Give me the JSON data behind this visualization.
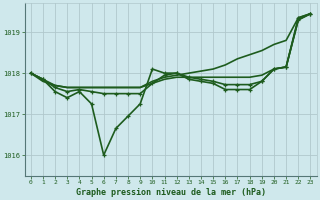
{
  "background_color": "#cfe8ec",
  "grid_color": "#b0c8cc",
  "line_color": "#1e5c1e",
  "title": "Graphe pression niveau de la mer (hPa)",
  "xlim": [
    -0.5,
    23.5
  ],
  "ylim": [
    1015.5,
    1019.7
  ],
  "yticks": [
    1016,
    1017,
    1018,
    1019
  ],
  "xticks": [
    0,
    1,
    2,
    3,
    4,
    5,
    6,
    7,
    8,
    9,
    10,
    11,
    12,
    13,
    14,
    15,
    16,
    17,
    18,
    19,
    20,
    21,
    22,
    23
  ],
  "series": [
    {
      "x": [
        0,
        1,
        2,
        3,
        4,
        5,
        6,
        7,
        8,
        9,
        10,
        11,
        12,
        13,
        14,
        15,
        16,
        17,
        18,
        19,
        20,
        21,
        22,
        23
      ],
      "y": [
        1018.0,
        1017.85,
        1017.55,
        1017.4,
        1017.55,
        1017.25,
        1016.0,
        1016.65,
        1016.95,
        1017.25,
        1018.1,
        1018.0,
        1018.0,
        1017.85,
        1017.8,
        1017.75,
        1017.6,
        1017.6,
        1017.6,
        1017.8,
        1018.1,
        1018.15,
        1019.35,
        1019.45
      ],
      "lw": 1.2,
      "marker": true
    },
    {
      "x": [
        0,
        1,
        2,
        3,
        4,
        5,
        6,
        7,
        8,
        9,
        10,
        11,
        12,
        13,
        14,
        15,
        16,
        17,
        18,
        19,
        20,
        21,
        22,
        23
      ],
      "y": [
        1018.0,
        1017.85,
        1017.7,
        1017.65,
        1017.65,
        1017.65,
        1017.65,
        1017.65,
        1017.65,
        1017.65,
        1017.8,
        1017.9,
        1017.95,
        1018.0,
        1018.05,
        1018.1,
        1018.2,
        1018.35,
        1018.45,
        1018.55,
        1018.7,
        1018.8,
        1019.35,
        1019.45
      ],
      "lw": 1.2,
      "marker": false
    },
    {
      "x": [
        0,
        1,
        2,
        3,
        4,
        5,
        6,
        7,
        8,
        9,
        10,
        11,
        12,
        13,
        14,
        15,
        16,
        17,
        18,
        19,
        20,
        21,
        22,
        23
      ],
      "y": [
        1018.0,
        1017.8,
        1017.7,
        1017.65,
        1017.65,
        1017.65,
        1017.65,
        1017.65,
        1017.65,
        1017.65,
        1017.75,
        1017.85,
        1017.9,
        1017.9,
        1017.9,
        1017.9,
        1017.9,
        1017.9,
        1017.9,
        1017.95,
        1018.1,
        1018.15,
        1019.3,
        1019.45
      ],
      "lw": 1.2,
      "marker": false
    },
    {
      "x": [
        0,
        1,
        2,
        3,
        4,
        5,
        6,
        7,
        8,
        9,
        10,
        11,
        12,
        13,
        14,
        15,
        16,
        17,
        18,
        19,
        20,
        21,
        22,
        23
      ],
      "y": [
        1018.0,
        1017.85,
        1017.65,
        1017.55,
        1017.6,
        1017.55,
        1017.5,
        1017.5,
        1017.5,
        1017.5,
        1017.75,
        1017.95,
        1018.0,
        1017.9,
        1017.85,
        1017.8,
        1017.72,
        1017.72,
        1017.72,
        1017.8,
        1018.1,
        1018.15,
        1019.3,
        1019.45
      ],
      "lw": 1.2,
      "marker": true
    }
  ]
}
